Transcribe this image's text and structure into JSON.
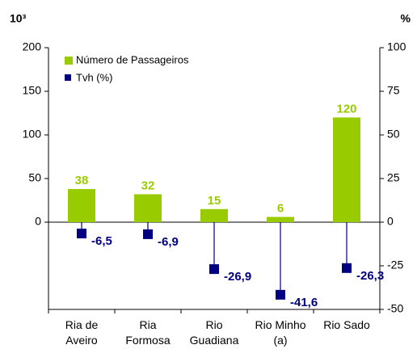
{
  "chart_data": {
    "type": "bar",
    "y_unit_label": "10³",
    "y2_unit_label": "%",
    "categories": [
      "Ria de Aveiro",
      "Ria Formosa",
      "Rio Guadiana",
      "Rio Minho (a)",
      "Rio Sado"
    ],
    "series": [
      {
        "name": "Número de Passageiros",
        "color": "#99cc00",
        "type": "bar",
        "values": [
          38,
          32,
          15,
          6,
          120
        ]
      },
      {
        "name": "Tvh (%)",
        "color": "#000080",
        "type": "marker",
        "axis": "y2",
        "values": [
          -6.5,
          -6.9,
          -26.9,
          -41.6,
          -26.3
        ],
        "value_labels": [
          "-6,5",
          "-6,9",
          "-26,9",
          "-41,6",
          "-26,3"
        ]
      }
    ],
    "ylim": [
      -100,
      200
    ],
    "yticks": [
      0,
      50,
      100,
      150,
      200
    ],
    "y2lim": [
      -50,
      100
    ],
    "y2ticks": [
      -50,
      -25,
      0,
      25,
      50,
      75,
      100
    ],
    "legend": "upper left"
  }
}
